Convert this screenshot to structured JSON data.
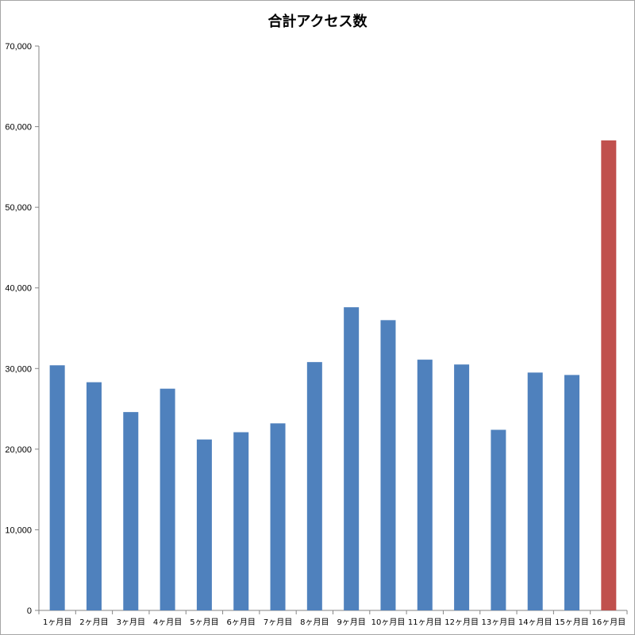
{
  "chart_data": {
    "type": "bar",
    "title": "合計アクセス数",
    "categories": [
      "1ヶ月目",
      "2ヶ月目",
      "3ヶ月目",
      "4ヶ月目",
      "5ヶ月目",
      "6ヶ月目",
      "7ヶ月目",
      "8ヶ月目",
      "9ヶ月目",
      "10ヶ月目",
      "11ヶ月目",
      "12ヶ月目",
      "13ヶ月目",
      "14ヶ月目",
      "15ヶ月目",
      "16ヶ月目"
    ],
    "values": [
      30400,
      28300,
      24600,
      27500,
      21200,
      22100,
      23200,
      30800,
      37600,
      36000,
      31100,
      30500,
      22400,
      29500,
      29200,
      58300
    ],
    "ylim": [
      0,
      70000
    ],
    "yticks": [
      0,
      10000,
      20000,
      30000,
      40000,
      50000,
      60000,
      70000
    ],
    "ytick_labels": [
      "0",
      "10,000",
      "20,000",
      "30,000",
      "40,000",
      "50,000",
      "60,000",
      "70,000"
    ],
    "xlabel": "",
    "ylabel": "",
    "grid": false,
    "colors": {
      "default_bar": "#4f81bd",
      "highlight_bar": "#c0504d",
      "axis": "#868686"
    },
    "highlight_index": 15
  }
}
